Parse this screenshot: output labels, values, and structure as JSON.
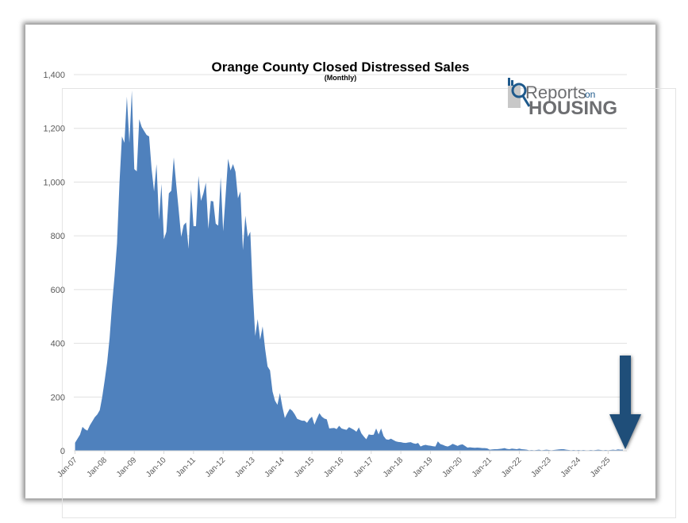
{
  "chart_data": {
    "type": "area",
    "title": "Orange County Closed Distressed Sales",
    "subtitle": "(Monthly)",
    "xlabel": "",
    "ylabel": "",
    "x_start": "Jan-07",
    "x_frequency": "monthly",
    "x_tick_labels": [
      "Jan-07",
      "Jan-08",
      "Jan-09",
      "Jan-10",
      "Jan-11",
      "Jan-12",
      "Jan-13",
      "Jan-14",
      "Jan-15",
      "Jan-16",
      "Jan-17",
      "Jan-18",
      "Jan-19",
      "Jan-20",
      "Jan-21",
      "Jan-22",
      "Jan-23",
      "Jan-24",
      "Jan-25"
    ],
    "y_tick_labels": [
      "0",
      "200",
      "400",
      "600",
      "800",
      "1,000",
      "1,200",
      "1,400"
    ],
    "ylim": [
      0,
      1400
    ],
    "grid": true,
    "legend": "none",
    "series": [
      {
        "name": "Closed Distressed Sales",
        "color": "#4F81BD",
        "values": [
          30,
          45,
          60,
          89,
          80,
          75,
          95,
          110,
          125,
          135,
          151,
          200,
          262,
          329,
          420,
          545,
          650,
          772,
          998,
          1170,
          1146,
          1318,
          1146,
          1341,
          1048,
          1040,
          1234,
          1205,
          1190,
          1175,
          1170,
          1050,
          965,
          1067,
          860,
          993,
          787,
          815,
          958,
          968,
          1092,
          990,
          895,
          796,
          840,
          850,
          752,
          973,
          836,
          836,
          1023,
          930,
          958,
          998,
          826,
          930,
          928,
          845,
          838,
          1018,
          817,
          950,
          1087,
          1043,
          1067,
          1038,
          940,
          965,
          747,
          875,
          796,
          815,
          595,
          427,
          490,
          414,
          463,
          380,
          314,
          299,
          221,
          187,
          171,
          215,
          164,
          122,
          140,
          156,
          149,
          136,
          119,
          115,
          112,
          112,
          104,
          118,
          127,
          97,
          120,
          140,
          127,
          120,
          117,
          83,
          84,
          85,
          81,
          93,
          83,
          80,
          78,
          88,
          83,
          78,
          71,
          87,
          65,
          53,
          43,
          61,
          59,
          60,
          83,
          61,
          83,
          55,
          43,
          41,
          45,
          40,
          35,
          33,
          32,
          30,
          29,
          31,
          32,
          28,
          26,
          29,
          16,
          20,
          22,
          20,
          19,
          17,
          16,
          35,
          25,
          22,
          18,
          16,
          20,
          26,
          22,
          18,
          22,
          24,
          18,
          12,
          13,
          12,
          11,
          12,
          11,
          10,
          10,
          9,
          4,
          5,
          6,
          6,
          7,
          8,
          10,
          7,
          6,
          8,
          7,
          6,
          8,
          6,
          5,
          4,
          2,
          3,
          2,
          3,
          4,
          2,
          3,
          4,
          3,
          2,
          3,
          4,
          5,
          6,
          6,
          4,
          3,
          2,
          3,
          2,
          3,
          2,
          3,
          2,
          2,
          3,
          2,
          3,
          4,
          3,
          2,
          3,
          2,
          3,
          4,
          3,
          5,
          4,
          4
        ]
      }
    ],
    "annotations": [
      {
        "type": "arrow",
        "direction": "down",
        "color": "#1F4E79",
        "target": "latest month"
      }
    ]
  },
  "logo": {
    "word1": "Reports",
    "word2": "on",
    "word3": "HOUSING",
    "primary": "#6d6e71",
    "accent": "#1f5a8c"
  }
}
